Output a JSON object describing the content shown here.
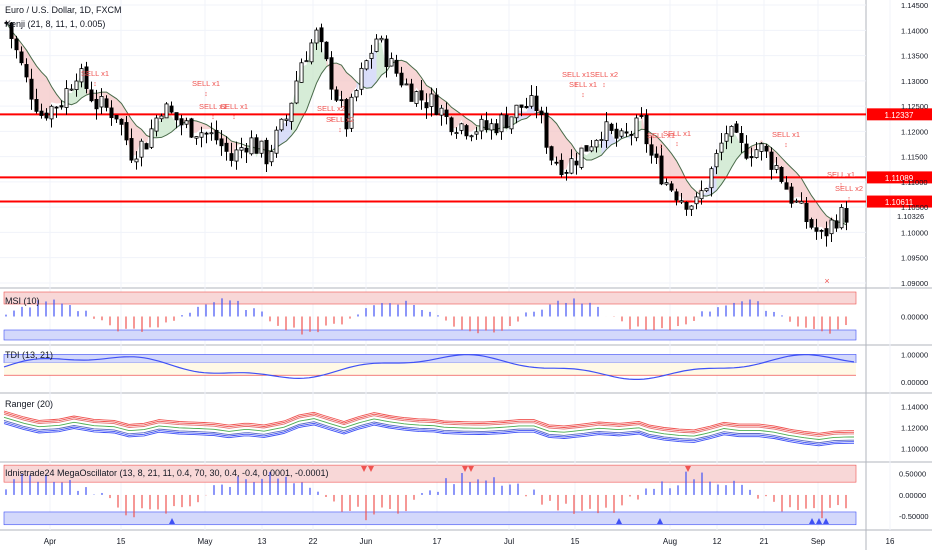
{
  "header": {
    "symbol": "Euro / U.S. Dollar, 1D, FXCM",
    "indicator": "Kenji (21, 8, 11, 1, 0.005)"
  },
  "colors": {
    "up": "#ffffff",
    "down": "#000000",
    "hline": "#ff0000",
    "signal": "#ef5350",
    "cloud_red": "#f4c7c7",
    "cloud_green": "#c8e6c9",
    "cloud_blue": "#cdd3f7",
    "bar_blue": "#3f51f5",
    "bar_red": "#ef5350",
    "band_red": "#f8d7d7",
    "band_blue": "#d3d8fb"
  },
  "chart_data": [
    {
      "type": "candlestick",
      "title": "Euro / U.S. Dollar, 1D, FXCM",
      "x_labels": [
        "Apr",
        "15",
        "May",
        "13",
        "22",
        "Jun",
        "17",
        "Jul",
        "15",
        "Aug",
        "12",
        "21",
        "Sep",
        "16"
      ],
      "y_ticks": [
        "1.14500",
        "1.14000",
        "1.13500",
        "1.13000",
        "1.12500",
        "1.12000",
        "1.11500",
        "1.11000",
        "1.10500",
        "1.10000",
        "1.09500",
        "1.09000"
      ],
      "ylim": [
        1.089,
        1.146
      ],
      "horizontal_lines": [
        {
          "value": 1.12337,
          "label": "1.12337"
        },
        {
          "value": 1.11089,
          "label": "1.11089"
        },
        {
          "value": 1.10611,
          "label": "1.10611"
        }
      ],
      "last_price": {
        "value": 1.10326,
        "label": "1.10326"
      },
      "signals": [
        {
          "text": "SELL x1"
        },
        {
          "text": "SELL x1"
        },
        {
          "text": "SELL x1"
        },
        {
          "text": "SELL x1"
        },
        {
          "text": "SELL x2"
        },
        {
          "text": "SELL x2"
        },
        {
          "text": "SELL x1"
        },
        {
          "text": "SELL x1"
        },
        {
          "text": "SELL x2"
        },
        {
          "text": "SELL x1"
        },
        {
          "text": "SELL x1"
        },
        {
          "text": "SELL x2"
        },
        {
          "text": "SELL x1"
        },
        {
          "text": "SELL x1"
        }
      ],
      "close_marker": "×",
      "anchors": [
        [
          0,
          1.1415
        ],
        [
          8,
          1.13
        ],
        [
          14,
          1.1235
        ],
        [
          22,
          1.126
        ],
        [
          28,
          1.132
        ],
        [
          36,
          1.1255
        ],
        [
          44,
          1.1235
        ],
        [
          50,
          1.116
        ],
        [
          56,
          1.118
        ],
        [
          62,
          1.125
        ],
        [
          70,
          1.1215
        ],
        [
          78,
          1.12
        ],
        [
          84,
          1.1185
        ],
        [
          90,
          1.1145
        ],
        [
          97,
          1.1185
        ],
        [
          104,
          1.115
        ],
        [
          112,
          1.1225
        ],
        [
          118,
          1.134
        ],
        [
          124,
          1.139
        ],
        [
          130,
          1.13
        ],
        [
          136,
          1.1215
        ],
        [
          142,
          1.131
        ],
        [
          148,
          1.1385
        ],
        [
          154,
          1.133
        ],
        [
          160,
          1.129
        ],
        [
          166,
          1.1265
        ],
        [
          172,
          1.1255
        ],
        [
          176,
          1.1225
        ],
        [
          184,
          1.121
        ],
        [
          192,
          1.1205
        ],
        [
          200,
          1.1225
        ],
        [
          206,
          1.125
        ],
        [
          212,
          1.125
        ],
        [
          218,
          1.115
        ],
        [
          224,
          1.113
        ],
        [
          232,
          1.117
        ],
        [
          238,
          1.1205
        ],
        [
          246,
          1.118
        ],
        [
          254,
          1.1215
        ],
        [
          258,
          1.115
        ],
        [
          264,
          1.11
        ],
        [
          270,
          1.107
        ],
        [
          276,
          1.1055
        ],
        [
          282,
          1.112
        ],
        [
          288,
          1.12
        ],
        [
          294,
          1.1165
        ],
        [
          302,
          1.1165
        ],
        [
          308,
          1.113
        ],
        [
          314,
          1.107
        ],
        [
          320,
          1.1025
        ],
        [
          326,
          1.099
        ],
        [
          332,
          1.103
        ],
        [
          337,
          1.1038
        ]
      ]
    },
    {
      "type": "bar",
      "title": "MSI (10)",
      "y_ticks": [
        "0.00000"
      ],
      "ylim": [
        -1,
        1
      ]
    },
    {
      "type": "line",
      "title": "TDI (13, 21)",
      "y_ticks": [
        "1.00000",
        "0.00000"
      ],
      "ylim": [
        -0.35,
        1.3
      ]
    },
    {
      "type": "line",
      "title": "Ranger (20)",
      "y_ticks": [
        "1.14000",
        "1.12000",
        "1.10000"
      ],
      "ylim": [
        1.088,
        1.152
      ]
    },
    {
      "type": "bar",
      "title": "Idnistrade24 MegaOscillator (13, 8, 21, 11, 0.4, 70, 30, 0.4, -0.4, 0.0001, -0.0001)",
      "y_ticks": [
        "0.50000",
        "0.00000",
        "-0.50000"
      ],
      "ylim": [
        -0.8,
        0.75
      ]
    }
  ]
}
